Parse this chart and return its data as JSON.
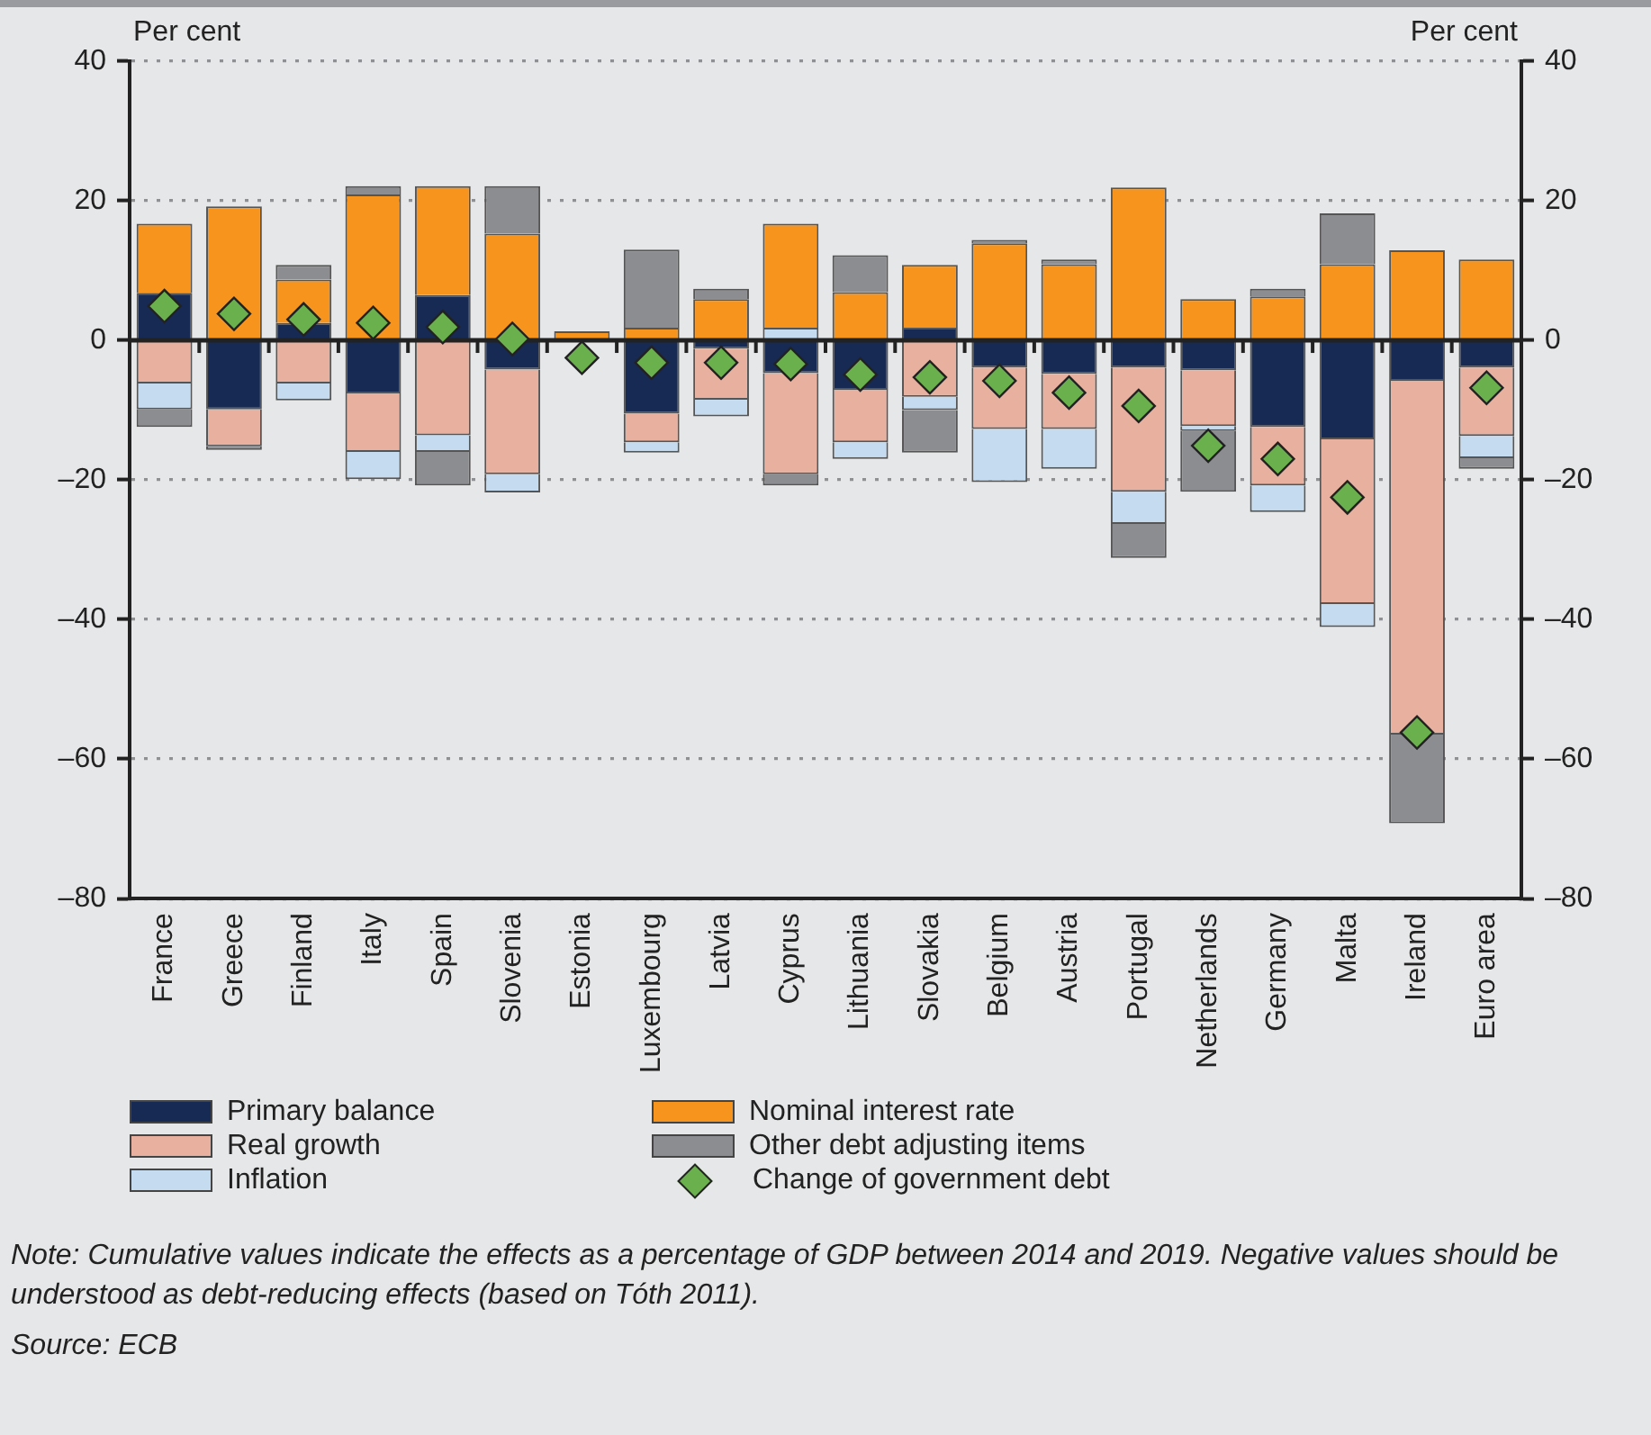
{
  "chart_data": {
    "type": "bar",
    "stacked": true,
    "ylabel": "Per cent",
    "y2label": "Per cent",
    "categories": [
      "France",
      "Greece",
      "Finland",
      "Italy",
      "Spain",
      "Slovenia",
      "Estonia",
      "Luxembourg",
      "Latvia",
      "Cyprus",
      "Lithuania",
      "Slovakia",
      "Belgium",
      "Austria",
      "Portugal",
      "Netherlands",
      "Germany",
      "Malta",
      "Ireland",
      "Euro area"
    ],
    "series": [
      {
        "name": "Primary balance",
        "color": "#172a54",
        "values": [
          6.8,
          -9.9,
          2.5,
          -7.6,
          6.5,
          -4.2,
          null,
          -10.5,
          -1.2,
          -4.7,
          -7.1,
          1.8,
          -3.9,
          -4.8,
          -3.9,
          -4.3,
          -12.4,
          -14.2,
          -5.8,
          -3.9
        ]
      },
      {
        "name": "Real growth",
        "color": "#e8b09e",
        "values": [
          -6.2,
          -5.3,
          -6.2,
          -8.4,
          -13.6,
          -15.0,
          null,
          -4.1,
          -7.3,
          -14.5,
          -7.5,
          -8.1,
          -8.8,
          -7.9,
          -17.8,
          -8.0,
          -8.4,
          -23.6,
          -50.7,
          -9.8
        ]
      },
      {
        "name": "Inflation",
        "color": "#c5dcf0",
        "values": [
          -3.7,
          null,
          -2.4,
          -3.9,
          -2.4,
          -2.6,
          null,
          -1.5,
          -2.4,
          1.8,
          -2.4,
          -1.9,
          -7.6,
          -5.7,
          -4.6,
          -0.7,
          -3.8,
          -3.3,
          null,
          -3.2
        ]
      },
      {
        "name": "Nominal interest rate",
        "color": "#f7941d",
        "values": [
          9.9,
          19.2,
          6.2,
          20.9,
          15.6,
          15.3,
          1.3,
          1.8,
          5.9,
          14.9,
          6.9,
          9.0,
          13.9,
          10.9,
          21.9,
          5.9,
          6.3,
          10.9,
          12.9,
          11.6
        ]
      },
      {
        "name": "Other debt adjusting items",
        "color": "#8c8d90",
        "values": [
          -2.5,
          -0.5,
          2.1,
          1.2,
          -4.8,
          6.8,
          null,
          11.2,
          1.5,
          -1.6,
          5.3,
          -6.1,
          0.5,
          0.7,
          -4.9,
          -8.7,
          1.1,
          7.3,
          -12.7,
          -1.5
        ]
      },
      {
        "name": "Change of government debt",
        "type": "scatter",
        "marker": "diamond",
        "color": "#6ab04c",
        "x": [
          "France",
          "Greece",
          "Finland",
          "Italy",
          "Spain",
          "Slovenia",
          "Estonia",
          "Luxembourg",
          "Latvia",
          "Cyprus",
          "Lithuania",
          "Slovakia",
          "Belgium",
          "Austria",
          "Portugal",
          "Netherlands",
          "Germany",
          "Malta",
          "Ireland",
          "Euro area"
        ],
        "values": [
          4.9,
          3.8,
          3.0,
          2.5,
          1.9,
          0.2,
          -2.5,
          -3.2,
          -3.2,
          -3.4,
          -4.9,
          -5.3,
          -5.8,
          -7.5,
          -9.4,
          -15.1,
          -17.0,
          -22.5,
          -56.2,
          -6.8
        ]
      }
    ],
    "ylim": [
      -80,
      40
    ],
    "yticks": [
      {
        "value": -80,
        "label": "–80"
      },
      {
        "value": -60,
        "label": "–60"
      },
      {
        "value": -40,
        "label": "–40"
      },
      {
        "value": -20,
        "label": "–20"
      },
      0,
      20,
      40
    ],
    "y2lim": [
      -80,
      40
    ],
    "y2ticks": [
      {
        "value": -80,
        "label": "–80"
      },
      {
        "value": -60,
        "label": "–60"
      },
      {
        "value": -40,
        "label": "–40"
      },
      {
        "value": -20,
        "label": "–20"
      },
      0,
      20,
      40
    ],
    "grid": "y",
    "legend": "bottom",
    "annotations": [
      "Note: Cumulative values indicate the effects as a percentage of GDP between 2014 and 2019. Negative values should be understood as debt-reducing effects (based on Tóth 2011).",
      "Source: ECB"
    ]
  }
}
